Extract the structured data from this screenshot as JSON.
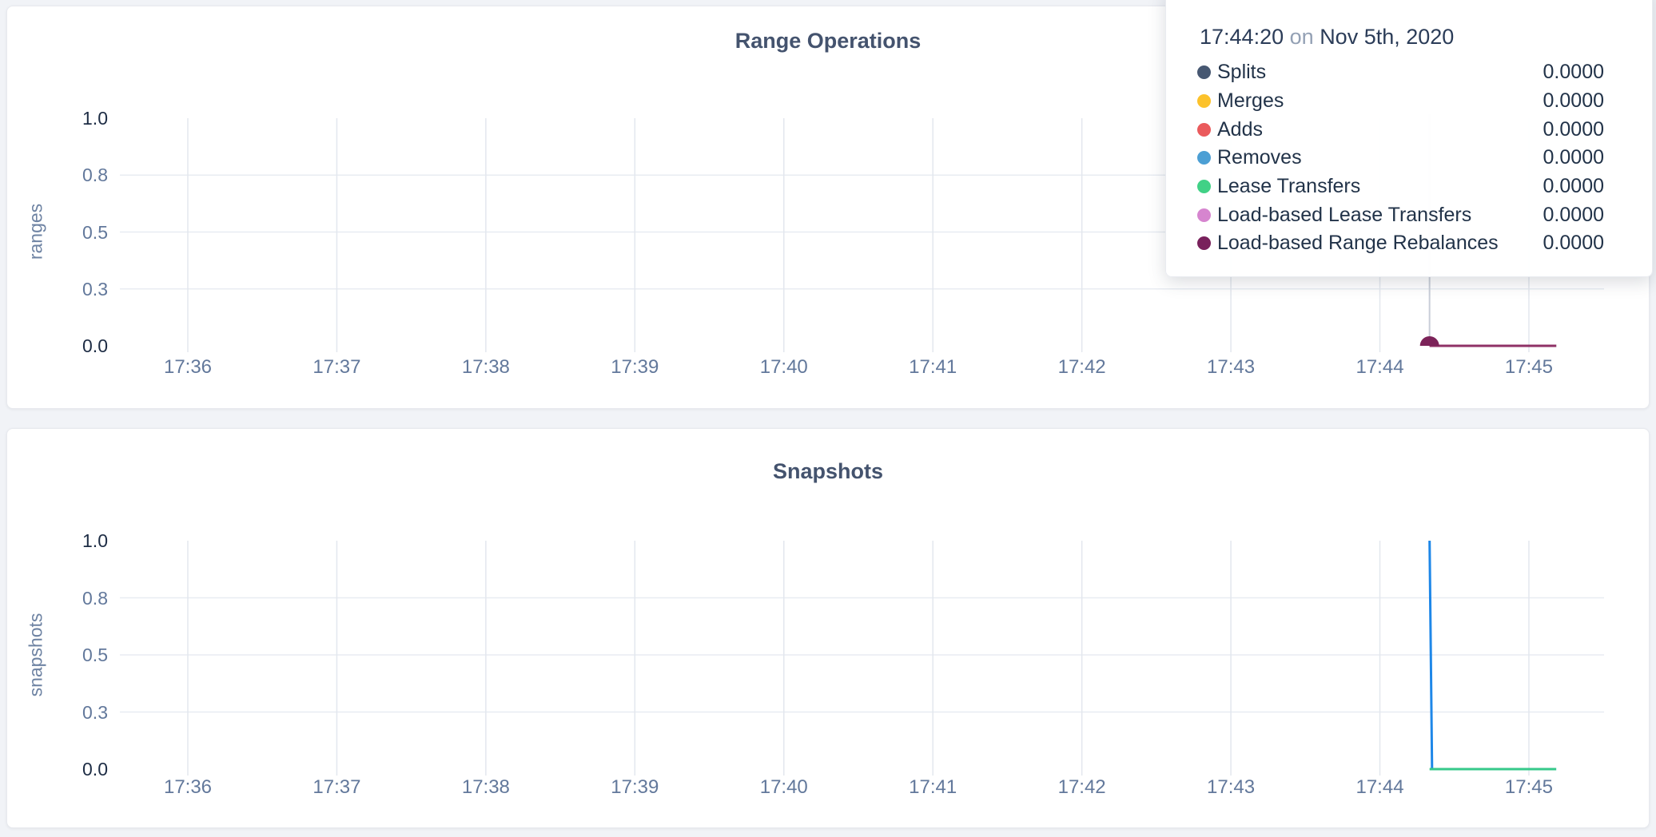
{
  "page": {
    "background": "#f1f3f7"
  },
  "tooltip": {
    "time": "17:44:20",
    "connector": "on",
    "date": "Nov 5th, 2020",
    "rows": [
      {
        "label": "Splits",
        "value": "0.0000",
        "color": "#475872"
      },
      {
        "label": "Merges",
        "value": "0.0000",
        "color": "#fcc22b"
      },
      {
        "label": "Adds",
        "value": "0.0000",
        "color": "#ea5a5c"
      },
      {
        "label": "Removes",
        "value": "0.0000",
        "color": "#4c9fd4"
      },
      {
        "label": "Lease Transfers",
        "value": "0.0000",
        "color": "#41d186"
      },
      {
        "label": "Load-based Lease Transfers",
        "value": "0.0000",
        "color": "#d685cf"
      },
      {
        "label": "Load-based Range Rebalances",
        "value": "0.0000",
        "color": "#79215c"
      }
    ]
  },
  "chart_data": [
    {
      "type": "line",
      "title": "Range Operations",
      "xlabel": "",
      "ylabel": "ranges",
      "ylim": [
        0,
        1
      ],
      "grid": true,
      "x_ticks": [
        "17:36",
        "17:37",
        "17:38",
        "17:39",
        "17:40",
        "17:41",
        "17:42",
        "17:43",
        "17:44",
        "17:45"
      ],
      "x_range": [
        "17:35:33",
        "17:45:30"
      ],
      "y_ticks": [
        "1.0",
        "0.8",
        "0.5",
        "0.3",
        "0.0"
      ],
      "y_tick_positions": [
        1,
        0.75,
        0.5,
        0.25,
        0
      ],
      "legend_position": "tooltip-overlay",
      "series": [
        {
          "name": "Splits",
          "color": "#475872",
          "points": [
            [
              "17:44:20",
              0
            ],
            [
              "17:45:11",
              0
            ]
          ]
        },
        {
          "name": "Merges",
          "color": "#fcc22b",
          "points": [
            [
              "17:44:20",
              0
            ],
            [
              "17:45:11",
              0
            ]
          ]
        },
        {
          "name": "Adds",
          "color": "#ea5a5c",
          "points": [
            [
              "17:44:20",
              0
            ],
            [
              "17:45:11",
              0
            ]
          ]
        },
        {
          "name": "Removes",
          "color": "#4c9fd4",
          "points": [
            [
              "17:44:20",
              0
            ],
            [
              "17:45:11",
              0
            ]
          ]
        },
        {
          "name": "Lease Transfers",
          "color": "#41d186",
          "points": [
            [
              "17:44:20",
              0
            ],
            [
              "17:45:11",
              0
            ]
          ]
        },
        {
          "name": "Load-based Lease Transfers",
          "color": "#d685cf",
          "points": [
            [
              "17:44:20",
              0
            ],
            [
              "17:45:11",
              0
            ]
          ]
        },
        {
          "name": "Load-based Range Rebalances",
          "color": "#8f3166",
          "points": [
            [
              "17:44:20",
              0
            ],
            [
              "17:45:11",
              0
            ]
          ]
        }
      ],
      "hover": {
        "time": "17:44:20",
        "value": 0,
        "dot_color": "#7c2359",
        "crosshair": true
      }
    },
    {
      "type": "line",
      "title": "Snapshots",
      "xlabel": "",
      "ylabel": "snapshots",
      "ylim": [
        0,
        1
      ],
      "grid": true,
      "x_ticks": [
        "17:36",
        "17:37",
        "17:38",
        "17:39",
        "17:40",
        "17:41",
        "17:42",
        "17:43",
        "17:44",
        "17:45"
      ],
      "x_range": [
        "17:35:33",
        "17:45:30"
      ],
      "y_ticks": [
        "1.0",
        "0.8",
        "0.5",
        "0.3",
        "0.0"
      ],
      "y_tick_positions": [
        1,
        0.75,
        0.5,
        0.25,
        0
      ],
      "legend_position": "none",
      "series": [
        {
          "name": "",
          "color": "#1e87e8",
          "points": [
            [
              "17:44:20",
              1
            ],
            [
              "17:44:21",
              0
            ],
            [
              "17:45:11",
              0
            ]
          ]
        },
        {
          "name": "",
          "color": "#36c98a",
          "points": [
            [
              "17:44:20",
              0
            ],
            [
              "17:45:11",
              0
            ]
          ]
        }
      ]
    }
  ]
}
